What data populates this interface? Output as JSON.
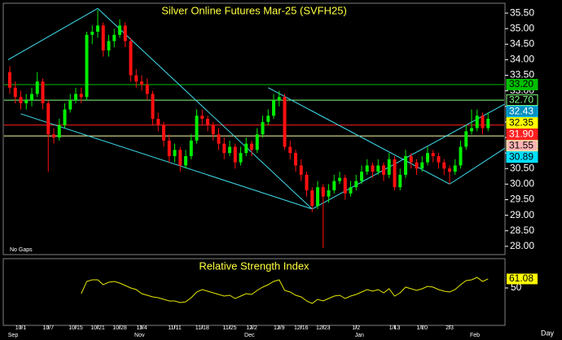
{
  "chart_data": {
    "type": "candlestick",
    "title": "Silver Online Futures Mar-25 (SVFH25)",
    "note": "No Gaps",
    "x_label": "Day",
    "categories": [
      null,
      null,
      "10/1",
      null,
      null,
      null,
      null,
      "10/7",
      null,
      null,
      null,
      null,
      "10/15",
      null,
      null,
      null,
      "10/21",
      null,
      null,
      null,
      "10/28",
      null,
      null,
      null,
      "11/4",
      null,
      null,
      null,
      null,
      null,
      "11/11",
      null,
      null,
      null,
      null,
      "11/18",
      null,
      null,
      null,
      null,
      "11/25",
      null,
      null,
      null,
      "12/2",
      null,
      null,
      null,
      null,
      "12/9",
      null,
      null,
      null,
      "12/16",
      null,
      null,
      null,
      "12/23",
      null,
      null,
      null,
      null,
      null,
      "1/2",
      null,
      null,
      null,
      null,
      null,
      null,
      "1/13",
      null,
      null,
      null,
      null,
      "1/20",
      null,
      null,
      null,
      null,
      "2/3",
      null,
      null
    ],
    "months": [
      "Sep",
      null,
      null,
      null,
      null,
      null,
      null,
      null,
      null,
      null,
      null,
      null,
      null,
      null,
      null,
      null,
      null,
      null,
      null,
      null,
      null,
      null,
      null,
      "Nov",
      null,
      null,
      null,
      null,
      null,
      null,
      null,
      null,
      null,
      null,
      null,
      null,
      null,
      null,
      null,
      null,
      null,
      null,
      null,
      "Dec",
      null,
      null,
      null,
      null,
      null,
      null,
      null,
      null,
      null,
      null,
      null,
      null,
      null,
      null,
      null,
      null,
      null,
      null,
      null,
      "Jan",
      null,
      null,
      null,
      null,
      null,
      null,
      null,
      null,
      null,
      null,
      null,
      null,
      null,
      null,
      null,
      null,
      null,
      null,
      null,
      null,
      "Feb",
      null,
      null
    ],
    "ohlc": [
      [
        33.6,
        33.8,
        32.9,
        33.1
      ],
      [
        33.1,
        33.3,
        32.6,
        32.8
      ],
      [
        32.8,
        33.0,
        32.4,
        32.6
      ],
      [
        32.6,
        32.9,
        32.4,
        32.7
      ],
      [
        32.7,
        33.1,
        32.5,
        32.9
      ],
      [
        32.9,
        33.6,
        32.8,
        33.3
      ],
      [
        33.3,
        33.4,
        32.4,
        32.6
      ],
      [
        32.6,
        32.7,
        30.4,
        31.6
      ],
      [
        31.6,
        31.8,
        31.3,
        31.5
      ],
      [
        31.5,
        32.1,
        31.4,
        31.9
      ],
      [
        31.9,
        32.6,
        31.8,
        32.4
      ],
      [
        32.4,
        32.9,
        32.3,
        32.7
      ],
      [
        32.7,
        33.1,
        32.6,
        32.9
      ],
      [
        32.9,
        33.1,
        32.6,
        32.8
      ],
      [
        32.8,
        34.9,
        32.7,
        34.8
      ],
      [
        34.8,
        35.1,
        34.5,
        34.9
      ],
      [
        34.9,
        35.6,
        34.7,
        35.1
      ],
      [
        35.1,
        35.2,
        34.1,
        34.3
      ],
      [
        34.3,
        34.8,
        34.1,
        34.6
      ],
      [
        34.6,
        35.0,
        34.4,
        34.8
      ],
      [
        34.8,
        35.3,
        34.7,
        35.1
      ],
      [
        35.1,
        35.2,
        34.4,
        34.6
      ],
      [
        34.6,
        34.7,
        33.3,
        33.5
      ],
      [
        33.5,
        33.7,
        33.1,
        33.3
      ],
      [
        33.3,
        33.5,
        33.0,
        33.2
      ],
      [
        33.2,
        33.4,
        32.7,
        32.9
      ],
      [
        32.9,
        33.0,
        31.9,
        32.1
      ],
      [
        32.1,
        32.3,
        31.7,
        31.9
      ],
      [
        31.9,
        32.0,
        31.2,
        31.4
      ],
      [
        31.4,
        31.6,
        30.7,
        30.9
      ],
      [
        30.9,
        31.3,
        30.7,
        31.1
      ],
      [
        31.1,
        31.2,
        30.4,
        30.6
      ],
      [
        30.6,
        31.1,
        30.5,
        30.9
      ],
      [
        30.9,
        31.6,
        30.8,
        31.4
      ],
      [
        31.4,
        32.4,
        31.3,
        32.2
      ],
      [
        32.2,
        32.4,
        31.9,
        32.1
      ],
      [
        32.1,
        32.2,
        31.7,
        31.9
      ],
      [
        31.9,
        32.0,
        31.4,
        31.6
      ],
      [
        31.6,
        31.8,
        31.1,
        31.3
      ],
      [
        31.3,
        31.5,
        30.8,
        31.0
      ],
      [
        31.0,
        31.4,
        30.9,
        31.2
      ],
      [
        31.2,
        31.3,
        30.5,
        30.7
      ],
      [
        30.7,
        31.2,
        30.6,
        31.0
      ],
      [
        31.0,
        31.5,
        30.9,
        31.3
      ],
      [
        31.3,
        31.4,
        30.9,
        31.1
      ],
      [
        31.1,
        31.8,
        31.0,
        31.6
      ],
      [
        31.6,
        32.2,
        31.5,
        32.0
      ],
      [
        32.0,
        32.4,
        31.9,
        32.2
      ],
      [
        32.2,
        32.9,
        32.1,
        32.7
      ],
      [
        32.7,
        33.0,
        32.5,
        32.8
      ],
      [
        32.8,
        32.9,
        31.1,
        31.2
      ],
      [
        31.2,
        31.4,
        30.8,
        31.0
      ],
      [
        31.0,
        31.1,
        30.4,
        30.6
      ],
      [
        30.6,
        30.8,
        30.1,
        30.3
      ],
      [
        30.3,
        30.4,
        29.6,
        29.8
      ],
      [
        29.8,
        29.9,
        29.1,
        29.3
      ],
      [
        29.3,
        30.1,
        29.2,
        29.9
      ],
      [
        29.9,
        30.0,
        27.95,
        29.6
      ],
      [
        29.6,
        30.0,
        29.4,
        29.8
      ],
      [
        29.8,
        30.3,
        29.7,
        30.1
      ],
      [
        30.1,
        30.4,
        30.0,
        30.2
      ],
      [
        30.2,
        30.3,
        29.5,
        29.7
      ],
      [
        29.7,
        30.1,
        29.6,
        29.9
      ],
      [
        29.9,
        30.3,
        29.8,
        30.1
      ],
      [
        30.1,
        30.6,
        30.0,
        30.4
      ],
      [
        30.4,
        30.8,
        30.3,
        30.6
      ],
      [
        30.6,
        30.7,
        30.2,
        30.4
      ],
      [
        30.4,
        30.8,
        30.3,
        30.6
      ],
      [
        30.6,
        30.7,
        30.1,
        30.3
      ],
      [
        30.3,
        31.0,
        30.2,
        30.8
      ],
      [
        30.8,
        30.9,
        29.8,
        29.9
      ],
      [
        29.9,
        30.5,
        29.8,
        30.3
      ],
      [
        30.3,
        31.1,
        30.2,
        30.9
      ],
      [
        30.9,
        31.0,
        30.5,
        30.7
      ],
      [
        30.7,
        30.8,
        30.3,
        30.5
      ],
      [
        30.5,
        30.9,
        30.4,
        30.7
      ],
      [
        30.7,
        31.2,
        30.6,
        31.0
      ],
      [
        31.0,
        31.1,
        30.7,
        30.9
      ],
      [
        30.9,
        31.0,
        30.5,
        30.7
      ],
      [
        30.7,
        30.8,
        30.3,
        30.5
      ],
      [
        30.5,
        30.6,
        30.0,
        30.4
      ],
      [
        30.4,
        30.8,
        30.3,
        30.6
      ],
      [
        30.6,
        31.4,
        30.5,
        31.2
      ],
      [
        31.2,
        31.9,
        31.1,
        31.7
      ],
      [
        31.7,
        32.4,
        31.6,
        31.8
      ],
      [
        31.8,
        32.4,
        31.7,
        32.2
      ],
      [
        32.2,
        32.3,
        31.6,
        31.8
      ],
      [
        31.8,
        32.3,
        31.7,
        32.1
      ]
    ],
    "up_color": "#00ee00",
    "down_color": "#ff1010",
    "ylim": [
      27.76,
      35.79
    ],
    "yticks": [
      {
        "value": 28.0,
        "label": "28.00"
      },
      {
        "value": 28.5,
        "label": "28.50"
      },
      {
        "value": 29.0,
        "label": "29.00"
      },
      {
        "value": 29.5,
        "label": "29.50"
      },
      {
        "value": 30.0,
        "label": "30.00"
      },
      {
        "value": 30.5,
        "label": "30.50"
      },
      {
        "value": 31.0,
        "label": "31.00"
      },
      {
        "value": 31.5,
        "label": "31.50"
      },
      {
        "value": 32.0,
        "label": "32.00"
      },
      {
        "value": 32.5,
        "label": "32.50"
      },
      {
        "value": 33.0,
        "label": "33.00"
      },
      {
        "value": 33.5,
        "label": "33.50"
      },
      {
        "value": 34.0,
        "label": "34.00"
      },
      {
        "value": 34.5,
        "label": "34.50"
      },
      {
        "value": 35.0,
        "label": "35.00"
      },
      {
        "value": 35.5,
        "label": "35.50"
      }
    ],
    "levels": [
      {
        "value": 33.2,
        "label": "33.20",
        "line": true,
        "color": "#00c000",
        "bg": "#00c000",
        "fg": "#000000"
      },
      {
        "value": 32.7,
        "label": "32.70",
        "line": true,
        "color": "#80ff80",
        "bg": "#000000",
        "fg": "#80ff80"
      },
      {
        "value": 32.43,
        "label": "32.43",
        "line": false,
        "color": "#00c8ff",
        "bg": "#0090c0",
        "fg": "#ffffff"
      },
      {
        "value": 32.35,
        "label": "32.35",
        "line": false,
        "color": "#ffff00",
        "bg": "#ffff00",
        "fg": "#000000"
      },
      {
        "value": 31.9,
        "label": "31.90",
        "line": true,
        "color": "#ff2020",
        "bg": "#ff2020",
        "fg": "#ffffff"
      },
      {
        "value": 31.55,
        "label": "31.55",
        "line": true,
        "color": "#ffffa0",
        "bg": "#ffb4b4",
        "fg": "#000000"
      },
      {
        "value": 30.89,
        "label": "30.89",
        "line": false,
        "color": "#00e0ff",
        "bg": "#00e0ff",
        "fg": "#000000"
      }
    ],
    "trendlines": [
      {
        "from": [
          -0.3,
          34.0
        ],
        "to": [
          16,
          35.65
        ]
      },
      {
        "from": [
          16,
          35.65
        ],
        "to": [
          55,
          29.2
        ]
      },
      {
        "from": [
          2,
          32.26
        ],
        "to": [
          55,
          29.2
        ]
      },
      {
        "from": [
          55,
          29.2
        ],
        "to": [
          90,
          32.57
        ]
      },
      {
        "from": [
          47,
          33.1
        ],
        "to": [
          80,
          30.0
        ]
      },
      {
        "from": [
          80,
          30.0
        ],
        "to": [
          90,
          31.15
        ]
      }
    ],
    "trend_color": "#40e0f0",
    "rsi": {
      "title": "Relative Strength Index",
      "color": "#e8e800",
      "ylim": [
        5,
        85
      ],
      "yticks": [
        50
      ],
      "values": [
        null,
        null,
        null,
        null,
        null,
        null,
        null,
        null,
        null,
        null,
        null,
        null,
        null,
        43,
        58,
        60,
        60,
        54,
        57,
        58,
        56,
        53,
        50,
        48,
        43,
        41,
        39,
        38,
        36,
        34,
        34,
        32,
        33,
        38,
        45,
        48,
        46,
        44,
        42,
        40,
        41,
        37,
        40,
        43,
        42,
        47,
        51,
        54,
        58,
        60,
        47,
        45,
        41,
        39,
        34,
        31,
        36,
        34,
        37,
        40,
        41,
        37,
        40,
        42,
        45,
        48,
        46,
        48,
        44,
        49,
        40,
        44,
        51,
        49,
        47,
        49,
        52,
        51,
        48,
        46,
        45,
        48,
        54,
        59,
        60,
        63,
        58,
        61.08
      ],
      "value_label": "61.08"
    }
  }
}
